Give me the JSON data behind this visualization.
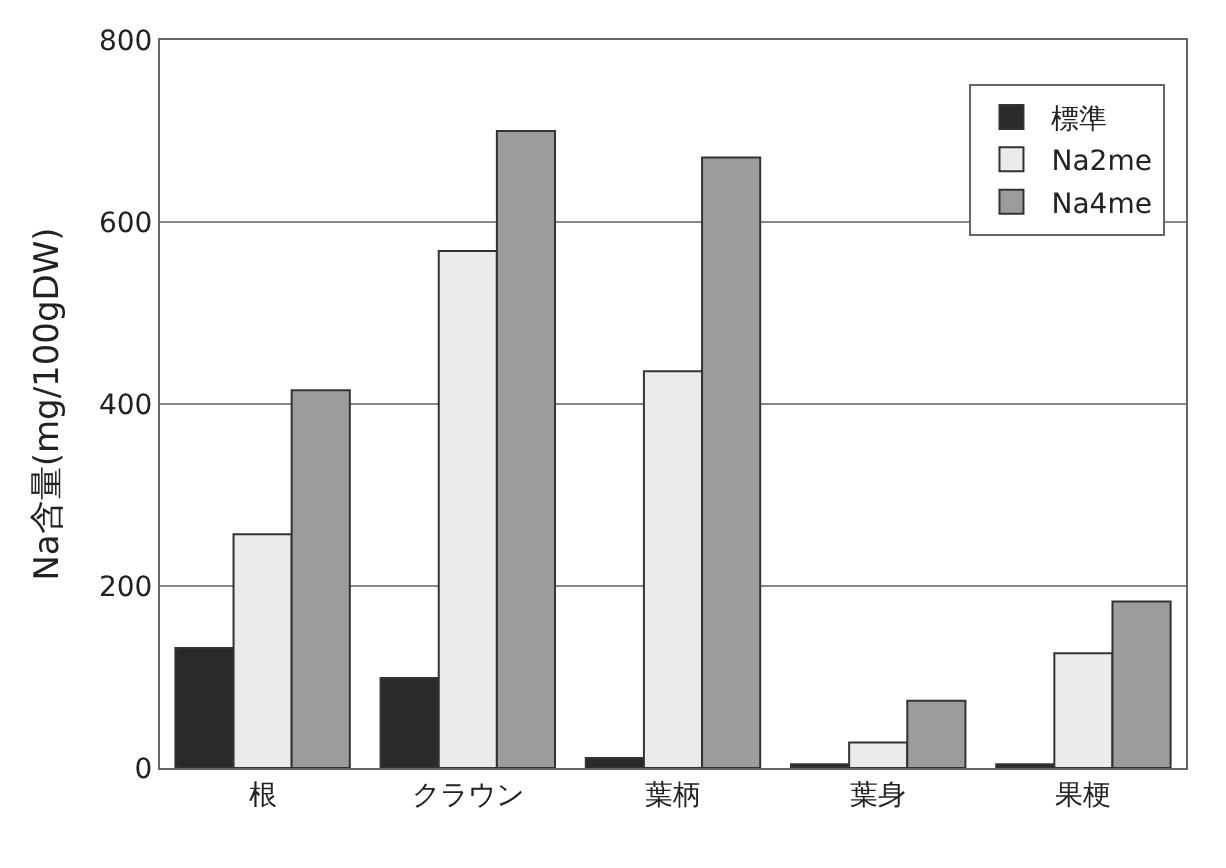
{
  "chart_data": {
    "type": "bar",
    "ylabel": "Na含量(mg/100gDW)",
    "categories": [
      "根",
      "クラウン",
      "葉柄",
      "葉身",
      "果梗"
    ],
    "series": [
      {
        "name": "標準",
        "color": "#2a2a2a",
        "values": [
          132,
          99,
          11,
          4,
          4
        ]
      },
      {
        "name": "Na2me",
        "color": "#ebebeb",
        "values": [
          257,
          568,
          436,
          28,
          126
        ]
      },
      {
        "name": "Na4me",
        "color": "#9c9c9c",
        "values": [
          415,
          700,
          671,
          74,
          183
        ]
      }
    ],
    "ylim": [
      0,
      800
    ],
    "yticks": [
      0,
      200,
      400,
      600,
      800
    ],
    "grid": "y",
    "legend": "top right"
  }
}
